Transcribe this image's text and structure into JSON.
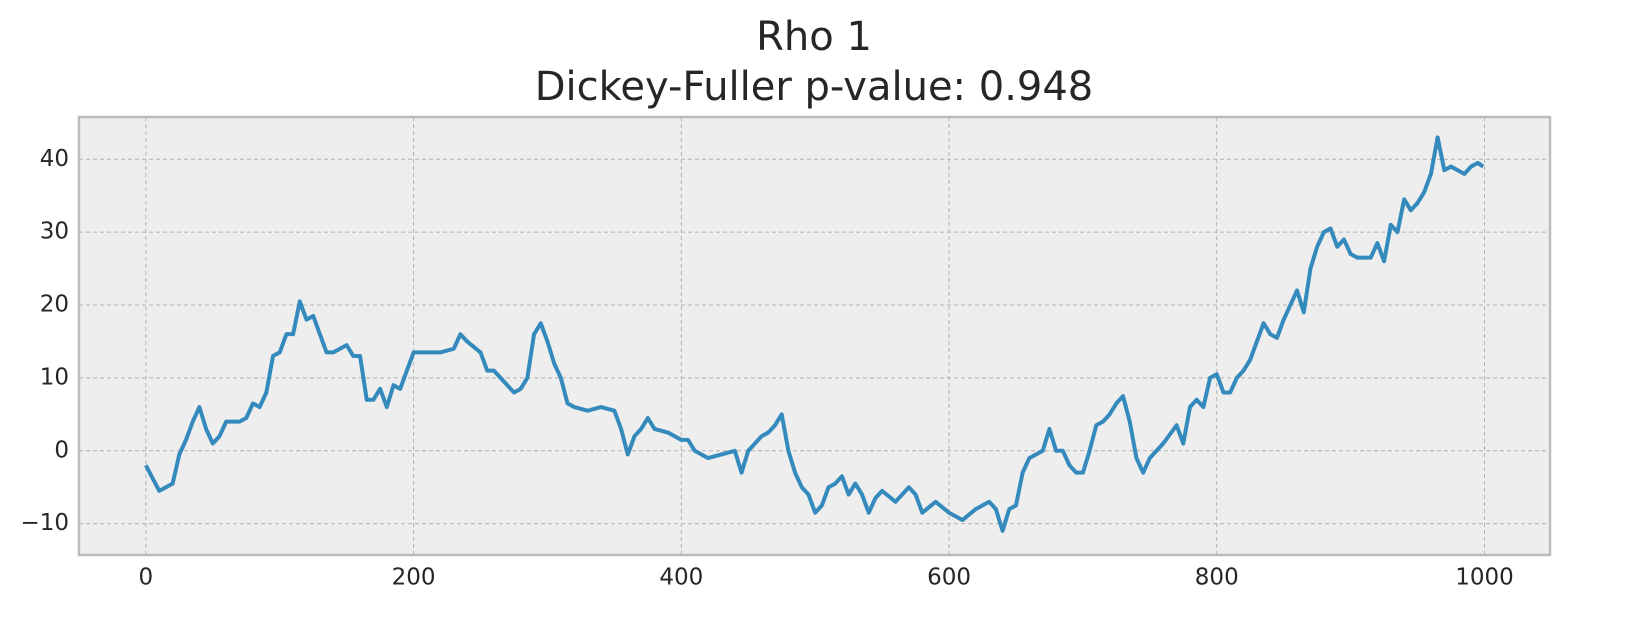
{
  "chart_data": {
    "type": "line",
    "title": "Rho 1",
    "subtitle": "Dickey-Fuller p-value: 0.948",
    "x": [
      0,
      10,
      20,
      25,
      30,
      35,
      40,
      45,
      50,
      55,
      60,
      70,
      75,
      80,
      85,
      90,
      95,
      100,
      105,
      110,
      115,
      120,
      125,
      130,
      135,
      140,
      145,
      150,
      155,
      160,
      165,
      170,
      175,
      180,
      185,
      190,
      195,
      200,
      210,
      220,
      230,
      235,
      240,
      250,
      255,
      260,
      270,
      275,
      280,
      285,
      290,
      295,
      300,
      305,
      310,
      315,
      320,
      330,
      340,
      350,
      355,
      360,
      365,
      370,
      375,
      380,
      390,
      400,
      405,
      410,
      420,
      430,
      440,
      445,
      450,
      455,
      460,
      465,
      470,
      475,
      480,
      485,
      490,
      495,
      500,
      505,
      510,
      515,
      520,
      525,
      530,
      535,
      540,
      545,
      550,
      560,
      570,
      575,
      580,
      590,
      600,
      605,
      610,
      620,
      630,
      635,
      640,
      645,
      650,
      655,
      660,
      670,
      675,
      680,
      685,
      690,
      695,
      700,
      705,
      710,
      715,
      720,
      725,
      730,
      735,
      740,
      745,
      750,
      760,
      770,
      775,
      780,
      785,
      790,
      795,
      800,
      805,
      810,
      815,
      820,
      825,
      830,
      835,
      840,
      845,
      850,
      855,
      860,
      865,
      870,
      875,
      880,
      885,
      890,
      895,
      900,
      905,
      910,
      915,
      920,
      925,
      930,
      935,
      940,
      945,
      950,
      955,
      960,
      965,
      970,
      975,
      980,
      985,
      990,
      995,
      999
    ],
    "series": [
      {
        "color": "#348abd",
        "values": [
          -2,
          -5.5,
          -4.5,
          -0.5,
          1.5,
          4,
          6,
          3,
          1,
          2,
          4,
          4,
          4.5,
          6.5,
          6,
          8,
          13,
          13.5,
          16,
          16,
          20.5,
          18,
          18.5,
          16,
          13.5,
          13.5,
          14,
          14.5,
          13,
          13,
          7,
          7,
          8.5,
          6,
          9,
          8.5,
          11,
          13.5,
          13.5,
          13.5,
          14,
          16,
          15,
          13.5,
          11,
          11,
          9,
          8,
          8.5,
          10,
          16,
          17.5,
          15,
          12,
          10,
          6.5,
          6,
          5.5,
          6,
          5.5,
          3,
          -0.5,
          2,
          3,
          4.5,
          3,
          2.5,
          1.5,
          1.5,
          0,
          -1,
          -0.5,
          0,
          -3,
          0,
          1,
          2,
          2.5,
          3.5,
          5,
          0,
          -3,
          -5,
          -6,
          -8.5,
          -7.5,
          -5,
          -4.5,
          -3.5,
          -6,
          -4.5,
          -6,
          -8.5,
          -6.5,
          -5.5,
          -7,
          -5,
          -6,
          -8.5,
          -7,
          -8.5,
          -9,
          -9.5,
          -8,
          -7,
          -8,
          -11,
          -8,
          -7.5,
          -3,
          -1,
          0,
          3,
          0,
          0,
          -2,
          -3,
          -3,
          0,
          3.5,
          4,
          5,
          6.5,
          7.5,
          4,
          -1,
          -3,
          -1,
          1,
          3.5,
          1,
          6,
          7,
          6,
          10,
          10.5,
          8,
          8,
          10,
          11,
          12.5,
          15,
          17.5,
          16,
          15.5,
          18,
          20,
          22,
          19,
          25,
          28,
          30,
          30.5,
          28,
          29,
          27,
          26.5,
          26.5,
          26.5,
          28.5,
          26,
          31,
          30,
          34.5,
          33,
          34,
          35.5,
          38,
          43,
          38.5,
          39,
          38.5,
          38,
          39,
          39.5,
          39
        ]
      }
    ],
    "xlim": [
      -49.95,
      1048.95
    ],
    "ylim": [
      -14.3,
      45.8
    ],
    "xticks": [
      0,
      200,
      400,
      600,
      800,
      1000
    ],
    "yticks": [
      {
        "value": -10,
        "label": "−10"
      },
      0,
      10,
      20,
      30,
      40
    ],
    "grid": true
  }
}
